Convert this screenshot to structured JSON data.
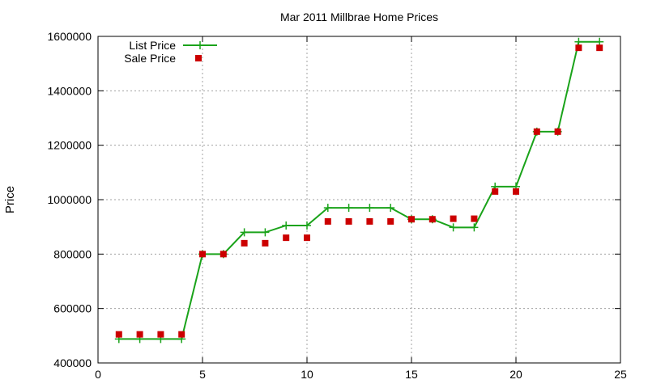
{
  "chart_data": {
    "type": "line",
    "title": "Mar 2011 Millbrae Home Prices",
    "xlabel": "",
    "ylabel": "Price",
    "xlim": [
      0,
      25
    ],
    "ylim": [
      400000,
      1600000
    ],
    "xticks": [
      0,
      5,
      10,
      15,
      20,
      25
    ],
    "yticks": [
      400000,
      600000,
      800000,
      1000000,
      1200000,
      1400000,
      1600000
    ],
    "grid": true,
    "legend_position": "top-left",
    "series": [
      {
        "name": "List Price",
        "style": "line+cross",
        "color": "#1aa31a",
        "x": [
          1,
          2,
          3,
          4,
          5,
          6,
          7,
          8,
          9,
          10,
          11,
          12,
          13,
          14,
          15,
          16,
          17,
          18,
          19,
          20,
          21,
          22,
          23,
          24
        ],
        "y": [
          488000,
          488000,
          488000,
          488000,
          800000,
          800000,
          880000,
          880000,
          905000,
          905000,
          970000,
          970000,
          970000,
          970000,
          928000,
          928000,
          898000,
          898000,
          1048000,
          1048000,
          1250000,
          1250000,
          1580000,
          1580000
        ]
      },
      {
        "name": "Sale Price",
        "style": "square",
        "color": "#cc0000",
        "x": [
          1,
          2,
          3,
          4,
          5,
          6,
          7,
          8,
          9,
          10,
          11,
          12,
          13,
          14,
          15,
          16,
          17,
          18,
          19,
          20,
          21,
          22,
          23,
          24
        ],
        "y": [
          505000,
          505000,
          505000,
          505000,
          800000,
          800000,
          840000,
          840000,
          860000,
          860000,
          920000,
          920000,
          920000,
          920000,
          928000,
          928000,
          930000,
          930000,
          1030000,
          1030000,
          1250000,
          1250000,
          1558000,
          1558000
        ]
      }
    ]
  }
}
